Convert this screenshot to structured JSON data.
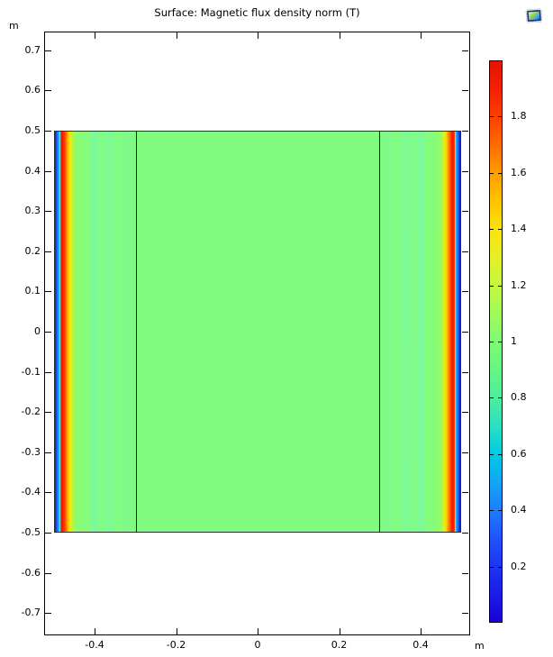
{
  "title": "Surface: Magnetic flux density norm (T)",
  "axes": {
    "x": {
      "unit": "m",
      "ticks": [
        {
          "v": -0.4,
          "label": "-0.4"
        },
        {
          "v": -0.2,
          "label": "-0.2"
        },
        {
          "v": 0,
          "label": "0"
        },
        {
          "v": 0.2,
          "label": "0.2"
        },
        {
          "v": 0.4,
          "label": "0.4"
        }
      ]
    },
    "y": {
      "unit": "m",
      "ticks": [
        {
          "v": 0.7,
          "label": "0.7"
        },
        {
          "v": 0.6,
          "label": "0.6"
        },
        {
          "v": 0.5,
          "label": "0.5"
        },
        {
          "v": 0.4,
          "label": "0.4"
        },
        {
          "v": 0.3,
          "label": "0.3"
        },
        {
          "v": 0.2,
          "label": "0.2"
        },
        {
          "v": 0.1,
          "label": "0.1"
        },
        {
          "v": 0,
          "label": "0"
        },
        {
          "v": -0.1,
          "label": "-0.1"
        },
        {
          "v": -0.2,
          "label": "-0.2"
        },
        {
          "v": -0.3,
          "label": "-0.3"
        },
        {
          "v": -0.4,
          "label": "-0.4"
        },
        {
          "v": -0.5,
          "label": "-0.5"
        },
        {
          "v": -0.6,
          "label": "-0.6"
        },
        {
          "v": -0.7,
          "label": "-0.7"
        }
      ]
    }
  },
  "surface": {
    "region_x": [
      -0.5,
      0.5
    ],
    "region_y": [
      -0.5,
      0.5
    ],
    "inner_boundaries_x": [
      -0.3,
      0.3
    ],
    "base_color": "#80fb80",
    "border_color": "#2e2e2e",
    "gradient_stops": [
      [
        0,
        "#1213c8"
      ],
      [
        0.5,
        "#2b5cf2"
      ],
      [
        0.95,
        "#00b5ff"
      ],
      [
        1.25,
        "#6ceafb"
      ],
      [
        1.32,
        "#6ceafb"
      ],
      [
        1.38,
        "#ff4000"
      ],
      [
        1.75,
        "#fd1500"
      ],
      [
        2.2,
        "#fd2a00"
      ],
      [
        2.65,
        "#ff6a00"
      ],
      [
        3.1,
        "#ffa700"
      ],
      [
        3.55,
        "#ffdd00"
      ],
      [
        4.0,
        "#d9f318"
      ],
      [
        4.7,
        "#a0f95c"
      ],
      [
        5.6,
        "#8afc73"
      ],
      [
        7.0,
        "#83fc7c"
      ],
      [
        8.2,
        "#87fd7a"
      ],
      [
        9.7,
        "#79f7a2"
      ],
      [
        11.3,
        "#83fc80"
      ],
      [
        13.3,
        "#7cf996"
      ],
      [
        15.3,
        "#82fc7e"
      ],
      [
        17.5,
        "#7efa8b"
      ],
      [
        20,
        "#80fb80"
      ],
      [
        80,
        "#80fb80"
      ],
      [
        82.5,
        "#7efa8b"
      ],
      [
        84.7,
        "#82fc7e"
      ],
      [
        86.7,
        "#7cf996"
      ],
      [
        88.7,
        "#83fc80"
      ],
      [
        90.3,
        "#79f7a2"
      ],
      [
        91.8,
        "#87fd7a"
      ],
      [
        93.0,
        "#83fc7c"
      ],
      [
        94.4,
        "#8afc73"
      ],
      [
        95.3,
        "#a0f95c"
      ],
      [
        96.0,
        "#d9f318"
      ],
      [
        96.45,
        "#ffdd00"
      ],
      [
        96.9,
        "#ffa700"
      ],
      [
        97.35,
        "#ff6a00"
      ],
      [
        97.8,
        "#fd2a00"
      ],
      [
        98.25,
        "#fd1500"
      ],
      [
        98.62,
        "#ff4000"
      ],
      [
        98.68,
        "#6ceafb"
      ],
      [
        98.75,
        "#6ceafb"
      ],
      [
        99.05,
        "#00b5ff"
      ],
      [
        99.5,
        "#2b5cf2"
      ],
      [
        100,
        "#1213c8"
      ]
    ]
  },
  "colorbar": {
    "min": 0,
    "max": 2,
    "unit": "T",
    "ticks": [
      {
        "v": 1.8,
        "label": "1.8"
      },
      {
        "v": 1.6,
        "label": "1.6"
      },
      {
        "v": 1.4,
        "label": "1.4"
      },
      {
        "v": 1.2,
        "label": "1.2"
      },
      {
        "v": 1.0,
        "label": "1"
      },
      {
        "v": 0.8,
        "label": "0.8"
      },
      {
        "v": 0.6,
        "label": "0.6"
      },
      {
        "v": 0.4,
        "label": "0.4"
      },
      {
        "v": 0.2,
        "label": "0.2"
      }
    ],
    "stops": [
      [
        0.0,
        "#1a00d5"
      ],
      [
        0.1,
        "#1c1ce8"
      ],
      [
        0.2,
        "#1d35f3"
      ],
      [
        0.3,
        "#1e55fb"
      ],
      [
        0.4,
        "#1f7dff"
      ],
      [
        0.5,
        "#12a7f3"
      ],
      [
        0.6,
        "#00cbe2"
      ],
      [
        0.7,
        "#2ce0c0"
      ],
      [
        0.8,
        "#4dee9f"
      ],
      [
        0.9,
        "#66f682"
      ],
      [
        1.0,
        "#7dfb76"
      ],
      [
        1.1,
        "#a0fa59"
      ],
      [
        1.2,
        "#c4f83e"
      ],
      [
        1.3,
        "#e6ef25"
      ],
      [
        1.4,
        "#fbe30e"
      ],
      [
        1.5,
        "#ffc300"
      ],
      [
        1.6,
        "#ff9d00"
      ],
      [
        1.7,
        "#ff6c00"
      ],
      [
        1.8,
        "#fc4100"
      ],
      [
        1.9,
        "#f32000"
      ],
      [
        2.0,
        "#e61400"
      ]
    ]
  },
  "icon": {
    "name": "plot-thumbnail"
  },
  "chart_data": {
    "type": "heatmap",
    "title": "Surface: Magnetic flux density norm (T)",
    "xlabel": "m",
    "ylabel": "m",
    "x_range": [
      -0.5,
      0.5
    ],
    "y_range": [
      -0.5,
      0.5
    ],
    "axis_x_ticks": [
      -0.4,
      -0.2,
      0,
      0.2,
      0.4
    ],
    "axis_y_ticks": [
      0.7,
      0.6,
      0.5,
      0.4,
      0.3,
      0.2,
      0.1,
      0,
      -0.1,
      -0.2,
      -0.3,
      -0.4,
      -0.5,
      -0.6,
      -0.7
    ],
    "colorbar": {
      "min": 0,
      "max": 2,
      "tick_step": 0.2,
      "unit": "T",
      "colormap": "rainbow"
    },
    "internal_boundaries_x": [
      -0.3,
      0.3
    ],
    "field_uniform_in_y": true,
    "x_profile": {
      "x": [
        -0.5,
        -0.498,
        -0.496,
        -0.493,
        -0.49,
        -0.485,
        -0.48,
        -0.475,
        -0.47,
        -0.46,
        -0.45,
        -0.43,
        -0.41,
        -0.39,
        -0.36,
        -0.33,
        -0.3,
        0,
        0.3,
        0.33,
        0.36,
        0.39,
        0.41,
        0.43,
        0.45,
        0.46,
        0.47,
        0.475,
        0.48,
        0.485,
        0.49,
        0.493,
        0.496,
        0.498,
        0.5
      ],
      "B_T": [
        0.05,
        0.35,
        0.6,
        0.7,
        1.98,
        1.95,
        1.75,
        1.5,
        1.3,
        1.12,
        1.02,
        1.05,
        0.88,
        1.02,
        0.93,
        1.0,
        1.0,
        1.0,
        1.0,
        1.0,
        0.93,
        1.02,
        0.88,
        1.05,
        1.02,
        1.12,
        1.3,
        1.5,
        1.75,
        1.95,
        1.98,
        0.7,
        0.6,
        0.35,
        0.05
      ]
    },
    "annotations": "Thin rainbow stripe (blue edge jumping to ~2 T red, decaying to ~1 T green) along x=-0.5 and x=+0.5; uniform ~1 T green interior; vertical material boundaries at x=±0.3"
  }
}
